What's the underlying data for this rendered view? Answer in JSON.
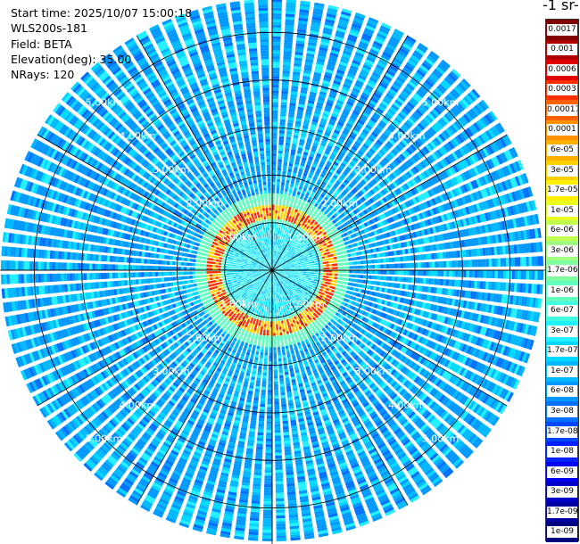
{
  "info": {
    "start_time": "Start time: 2025/10/07 15:00:18",
    "station": "WLS200s-181",
    "field": "Field: BETA",
    "elevation": "Elevation(deg): 35.00",
    "nrays": "NRays: 120"
  },
  "unit_title": "-1 sr-",
  "chart_data": {
    "type": "heatmap",
    "projection": "polar (PPI scan)",
    "field": "BETA",
    "elevation_deg": 35.0,
    "n_rays": 120,
    "range_rings_km": [
      1.0,
      2.0,
      3.0,
      4.0,
      5.0
    ],
    "ring_labels": [
      "1.00km",
      "2.00km",
      "3.00km",
      "4.00km",
      "5.00km"
    ],
    "max_range_km": 5.7,
    "spokes_deg": [
      0,
      30,
      60,
      90,
      120,
      150,
      180,
      210,
      240,
      270,
      300,
      330
    ],
    "colorbar": {
      "labels": [
        "0.0017",
        "0.001",
        "0.0006",
        "0.0003",
        "0.00017",
        "0.0001",
        "6e-05",
        "3e-05",
        "1.7e-05",
        "1e-05",
        "6e-06",
        "3e-06",
        "1.7e-06",
        "1e-06",
        "6e-07",
        "3e-07",
        "1.7e-07",
        "1e-07",
        "6e-08",
        "3e-08",
        "1.7e-08",
        "1e-08",
        "6e-09",
        "3e-09",
        "1.7e-09",
        "1e-09"
      ],
      "colors": [
        "#800000",
        "#b00000",
        "#e00000",
        "#ff3000",
        "#ff6000",
        "#ff9000",
        "#ffb000",
        "#ffd000",
        "#fff000",
        "#e8ff20",
        "#c0ff50",
        "#a0ff80",
        "#80ffa0",
        "#60ffc0",
        "#40ffe0",
        "#20f0ff",
        "#00d8ff",
        "#00b8ff",
        "#0098ff",
        "#0070ff",
        "#0048ff",
        "#0020ff",
        "#0000f0",
        "#0000c8",
        "#0000a0",
        "#000080"
      ]
    },
    "pattern": {
      "inner_region_km": 1.05,
      "inner_value": "3e-07",
      "ring_band_km": [
        1.05,
        1.35
      ],
      "ring_band_values": [
        "1e-06",
        "0.0003"
      ],
      "outer_value": "6e-08"
    }
  }
}
